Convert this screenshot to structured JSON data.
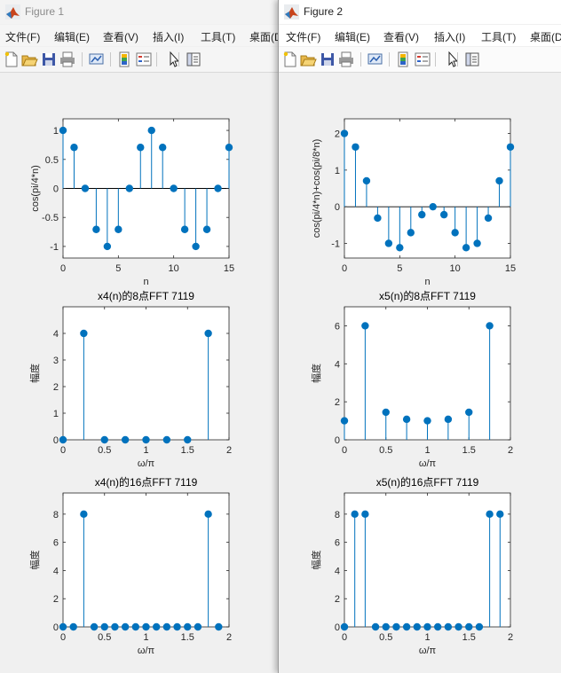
{
  "windows": [
    {
      "id": "win1",
      "title": "Figure 1",
      "active": false,
      "menus": [
        "文件(F)",
        "编辑(E)",
        "查看(V)",
        "插入(I)",
        "工具(T)",
        "桌面(D)"
      ],
      "plots": [
        {
          "title": "",
          "xlabel": "n",
          "ylabel": "cos(pi/4*n)",
          "x": [
            0,
            1,
            2,
            3,
            4,
            5,
            6,
            7,
            8,
            9,
            10,
            11,
            12,
            13,
            14,
            15
          ],
          "y": [
            1,
            0.707,
            0,
            -0.707,
            -1,
            -0.707,
            0,
            0.707,
            1,
            0.707,
            0,
            -0.707,
            -1,
            -0.707,
            0,
            0.707
          ],
          "xlim": [
            0,
            15
          ],
          "ylim": [
            -1.2,
            1.2
          ],
          "xticks": [
            0,
            5,
            10,
            15
          ],
          "xtick_labels": [
            "0",
            "5",
            "10",
            "15"
          ],
          "yticks": [
            -1,
            -0.5,
            0,
            0.5,
            1
          ],
          "ytick_labels": [
            "-1",
            "-0.5",
            "0",
            "0.5",
            "1"
          ],
          "baseline": true
        },
        {
          "title": "x4(n)的8点FFT  7119",
          "xlabel": "ω/π",
          "ylabel": "幅度",
          "x": [
            0,
            0.25,
            0.5,
            0.75,
            1,
            1.25,
            1.5,
            1.75
          ],
          "y": [
            0,
            4,
            0,
            0,
            0,
            0,
            0,
            4
          ],
          "xlim": [
            0,
            2
          ],
          "ylim": [
            0,
            5
          ],
          "xticks": [
            0,
            0.5,
            1,
            1.5,
            2
          ],
          "xtick_labels": [
            "0",
            "0.5",
            "1",
            "1.5",
            "2"
          ],
          "yticks": [
            0,
            1,
            2,
            3,
            4
          ],
          "ytick_labels": [
            "0",
            "1",
            "2",
            "3",
            "4"
          ],
          "baseline": false
        },
        {
          "title": "x4(n)的16点FFT  7119",
          "xlabel": "ω/π",
          "ylabel": "幅度",
          "x": [
            0,
            0.125,
            0.25,
            0.375,
            0.5,
            0.625,
            0.75,
            0.875,
            1,
            1.125,
            1.25,
            1.375,
            1.5,
            1.625,
            1.75,
            1.875
          ],
          "y": [
            0,
            0,
            8,
            0,
            0,
            0,
            0,
            0,
            0,
            0,
            0,
            0,
            0,
            0,
            8,
            0
          ],
          "xlim": [
            0,
            2
          ],
          "ylim": [
            0,
            9.5
          ],
          "xticks": [
            0,
            0.5,
            1,
            1.5,
            2
          ],
          "xtick_labels": [
            "0",
            "0.5",
            "1",
            "1.5",
            "2"
          ],
          "yticks": [
            0,
            2,
            4,
            6,
            8
          ],
          "ytick_labels": [
            "0",
            "2",
            "4",
            "6",
            "8"
          ],
          "baseline": false
        }
      ]
    },
    {
      "id": "win2",
      "title": "Figure 2",
      "active": true,
      "menus": [
        "文件(F)",
        "编辑(E)",
        "查看(V)",
        "插入(I)",
        "工具(T)",
        "桌面(D)"
      ],
      "plots": [
        {
          "title": "",
          "xlabel": "n",
          "ylabel": "cos(pi/4*n)+cos(pi/8*n)",
          "x": [
            0,
            1,
            2,
            3,
            4,
            5,
            6,
            7,
            8,
            9,
            10,
            11,
            12,
            13,
            14,
            15
          ],
          "y": [
            2,
            1.631,
            0.707,
            -0.31,
            -1,
            -1.117,
            -0.707,
            -0.217,
            0,
            -0.217,
            -0.707,
            -1.117,
            -1,
            -0.31,
            0.707,
            1.631
          ],
          "xlim": [
            0,
            15
          ],
          "ylim": [
            -1.4,
            2.4
          ],
          "xticks": [
            0,
            5,
            10,
            15
          ],
          "xtick_labels": [
            "0",
            "5",
            "10",
            "15"
          ],
          "yticks": [
            -1,
            0,
            1,
            2
          ],
          "ytick_labels": [
            "-1",
            "0",
            "1",
            "2"
          ],
          "baseline": true
        },
        {
          "title": "x5(n)的8点FFT  7119",
          "xlabel": "ω/π",
          "ylabel": "幅度",
          "x": [
            0,
            0.25,
            0.5,
            0.75,
            1,
            1.25,
            1.5,
            1.75
          ],
          "y": [
            1,
            6,
            1.45,
            1.08,
            1,
            1.08,
            1.45,
            6
          ],
          "xlim": [
            0,
            2
          ],
          "ylim": [
            0,
            7
          ],
          "xticks": [
            0,
            0.5,
            1,
            1.5,
            2
          ],
          "xtick_labels": [
            "0",
            "0.5",
            "1",
            "1.5",
            "2"
          ],
          "yticks": [
            0,
            2,
            4,
            6
          ],
          "ytick_labels": [
            "0",
            "2",
            "4",
            "6"
          ],
          "baseline": false
        },
        {
          "title": "x5(n)的16点FFT  7119",
          "xlabel": "ω/π",
          "ylabel": "幅度",
          "x": [
            0,
            0.125,
            0.25,
            0.375,
            0.5,
            0.625,
            0.75,
            0.875,
            1,
            1.125,
            1.25,
            1.375,
            1.5,
            1.625,
            1.75,
            1.875
          ],
          "y": [
            0,
            8,
            8,
            0,
            0,
            0,
            0,
            0,
            0,
            0,
            0,
            0,
            0,
            0,
            8,
            8
          ],
          "xlim": [
            0,
            2
          ],
          "ylim": [
            0,
            9.5
          ],
          "xticks": [
            0,
            0.5,
            1,
            1.5,
            2
          ],
          "xtick_labels": [
            "0",
            "0.5",
            "1",
            "1.5",
            "2"
          ],
          "yticks": [
            0,
            2,
            4,
            6,
            8
          ],
          "ytick_labels": [
            "0",
            "2",
            "4",
            "6",
            "8"
          ],
          "baseline": false
        }
      ]
    }
  ],
  "toolbar_icons": [
    "new-figure-icon",
    "open-file-icon",
    "save-icon",
    "print-icon",
    "link-plot-icon",
    "colorbar-icon",
    "legend-icon",
    "select-pointer-icon",
    "property-inspector-icon"
  ],
  "colors": {
    "stem": "#0072BD",
    "axes": "#262626",
    "figure_bg": "#f0f0f0",
    "axes_bg": "#ffffff"
  }
}
